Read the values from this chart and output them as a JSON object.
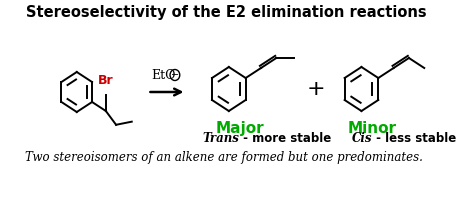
{
  "title": "Stereoselectivity of the E2 elimination reactions",
  "title_fontsize": 10.5,
  "title_fontweight": "bold",
  "bg_color": "#ffffff",
  "major_label": "Major",
  "minor_label": "Minor",
  "major_color": "#00aa00",
  "minor_color": "#00aa00",
  "trans_label": "Trans",
  "trans_suffix": " - more stable",
  "cis_label": "Cis",
  "cis_suffix": " - less stable",
  "footer": "Two stereoisomers of an alkene are formed but one predominates.",
  "footer_fontsize": 8.5,
  "label_fontsize": 11,
  "sub_fontsize": 8.5,
  "reagent": "EtO",
  "br_color": "#cc0000",
  "lw": 1.4
}
